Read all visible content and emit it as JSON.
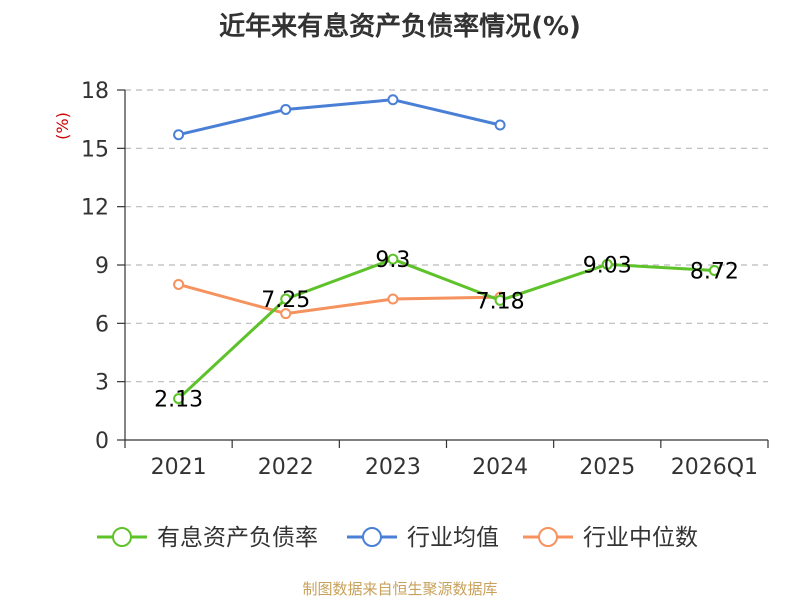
{
  "chart_data": {
    "type": "line",
    "title": "近年来有息资产负债率情况(%)",
    "ylabel": "(%)",
    "categories": [
      "2021",
      "2022",
      "2023",
      "2024",
      "2025",
      "2026Q1"
    ],
    "yticks": [
      0,
      3,
      6,
      9,
      12,
      15,
      18
    ],
    "ylim": [
      0,
      18
    ],
    "grid": true,
    "legend_position": "bottom",
    "series": [
      {
        "name": "有息资产负债率",
        "color": "#5ec22a",
        "values": [
          2.13,
          7.25,
          9.3,
          7.18,
          9.03,
          8.72
        ],
        "labels": [
          "2.13",
          "7.25",
          "9.3",
          "7.18",
          "9.03",
          "8.72"
        ]
      },
      {
        "name": "行业均值",
        "color": "#4a7fd6",
        "values": [
          15.7,
          17.0,
          17.5,
          16.2,
          null,
          null
        ]
      },
      {
        "name": "行业中位数",
        "color": "#f5925e",
        "values": [
          8.0,
          6.5,
          7.25,
          7.35,
          null,
          null
        ]
      }
    ]
  },
  "source": "制图数据来自恒生聚源数据库"
}
